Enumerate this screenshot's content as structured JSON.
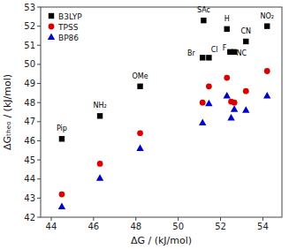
{
  "chart_data": {
    "type": "scatter",
    "x_label": "ΔG / (kJ/mol)",
    "y_label": "ΔGₜₕₑₒ / (kJ/mol)",
    "xlim": [
      43.5,
      54.9
    ],
    "ylim": [
      42,
      53
    ],
    "xticks": [
      44,
      46,
      48,
      50,
      52,
      54
    ],
    "yticks": [
      42,
      43,
      44,
      45,
      46,
      47,
      48,
      49,
      50,
      51,
      52,
      53
    ],
    "legend": "upper left",
    "series": [
      {
        "name": "B3LYP",
        "color": "black",
        "marker": "square",
        "x": [
          44.5,
          46.3,
          48.2,
          51.15,
          51.45,
          51.2,
          52.3,
          52.45,
          52.65,
          53.2,
          54.2
        ],
        "values": [
          46.1,
          47.3,
          48.85,
          50.35,
          50.35,
          52.3,
          51.85,
          50.65,
          50.65,
          51.2,
          52.0
        ]
      },
      {
        "name": "TPSS",
        "color": "#dd0000",
        "marker": "circle",
        "x": [
          44.5,
          46.3,
          48.2,
          51.15,
          51.45,
          52.3,
          52.5,
          52.65,
          53.2,
          54.2
        ],
        "values": [
          43.2,
          44.8,
          46.4,
          48.0,
          48.85,
          49.3,
          48.05,
          48.0,
          48.6,
          49.65
        ]
      },
      {
        "name": "BP86",
        "color": "#0000cc",
        "marker": "triangle",
        "x": [
          44.5,
          46.3,
          48.2,
          51.15,
          51.45,
          52.3,
          52.5,
          52.65,
          53.2,
          54.2
        ],
        "values": [
          42.55,
          44.05,
          45.6,
          46.95,
          47.95,
          48.35,
          47.2,
          47.65,
          47.6,
          48.35
        ]
      }
    ],
    "annotations": [
      {
        "text": "Pip",
        "x": 44.5,
        "y": 46.45
      },
      {
        "text": "NH₂",
        "x": 46.3,
        "y": 47.62
      },
      {
        "text": "OMe",
        "x": 48.2,
        "y": 49.18
      },
      {
        "text": "Br",
        "x": 50.8,
        "y": 50.35
      },
      {
        "text": "Cl",
        "x": 51.55,
        "y": 50.55
      },
      {
        "text": "SAc",
        "x": 51.2,
        "y": 52.62
      },
      {
        "text": "H",
        "x": 52.3,
        "y": 52.17
      },
      {
        "text": "F",
        "x": 52.28,
        "y": 50.65
      },
      {
        "text": "NC",
        "x": 52.75,
        "y": 50.38
      },
      {
        "text": "CN",
        "x": 53.2,
        "y": 51.52
      },
      {
        "text": "NO₂",
        "x": 54.2,
        "y": 52.32
      }
    ]
  }
}
